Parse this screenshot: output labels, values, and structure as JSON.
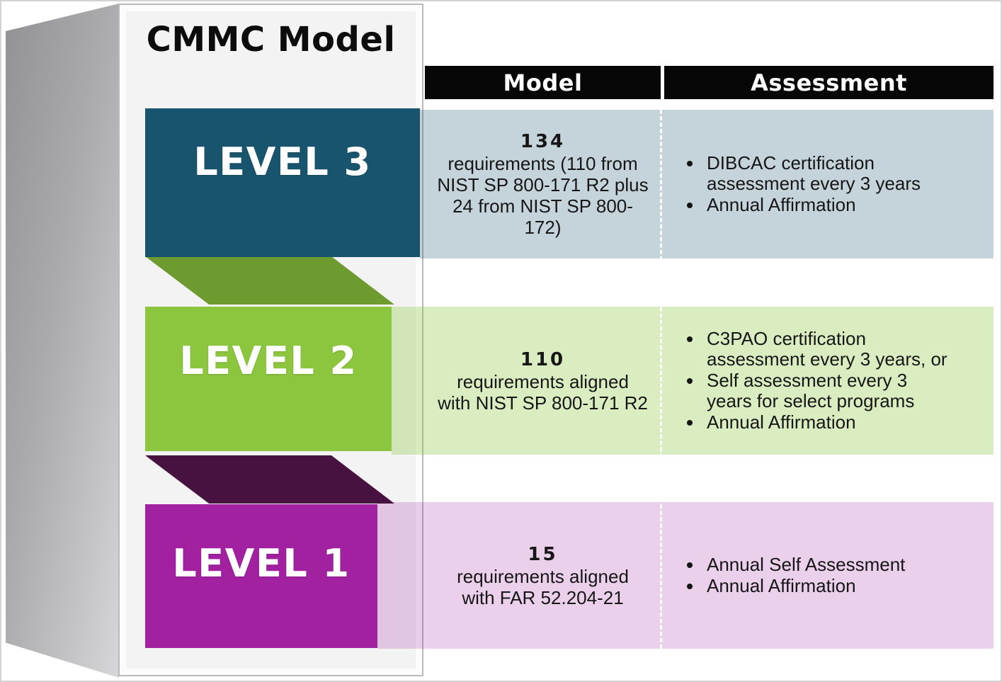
{
  "title": "CMMC Model",
  "columns": {
    "model": "Model",
    "assessment": "Assessment"
  },
  "colors": {
    "header_bar": "#070707",
    "level3_teal": "#19546e",
    "level2_green": "#8cc63e",
    "level1_magenta": "#a121a1",
    "fold_dark_green": "#6d9b2f",
    "fold_dark_purple": "#471240",
    "tint_teal": "#ccdae0",
    "tint_green": "#dcebc9",
    "tint_pink": "#ecd3ea",
    "card_fill": "#f3f3f3"
  },
  "levels": [
    {
      "name": "Level 3",
      "label": "LEVEL 3",
      "count": "134",
      "model_lines": [
        "requirements (110 from",
        "NIST SP 800-171 R2 plus",
        "24 from NIST SP 800-",
        "172)"
      ],
      "assessment": [
        "DIBCAC certification assessment every 3 years",
        "Annual Affirmation"
      ]
    },
    {
      "name": "Level 2",
      "label": "LEVEL 2",
      "count": "110",
      "model_lines": [
        "requirements aligned",
        "with NIST SP 800-171 R2"
      ],
      "assessment": [
        "C3PAO certification assessment every 3 years, or",
        "Self assessment every 3 years for select programs",
        "Annual Affirmation"
      ]
    },
    {
      "name": "Level 1",
      "label": "LEVEL 1",
      "count": "15",
      "model_lines": [
        "requirements aligned",
        "with FAR 52.204-21"
      ],
      "assessment": [
        "Annual Self Assessment",
        "Annual Affirmation"
      ]
    }
  ]
}
